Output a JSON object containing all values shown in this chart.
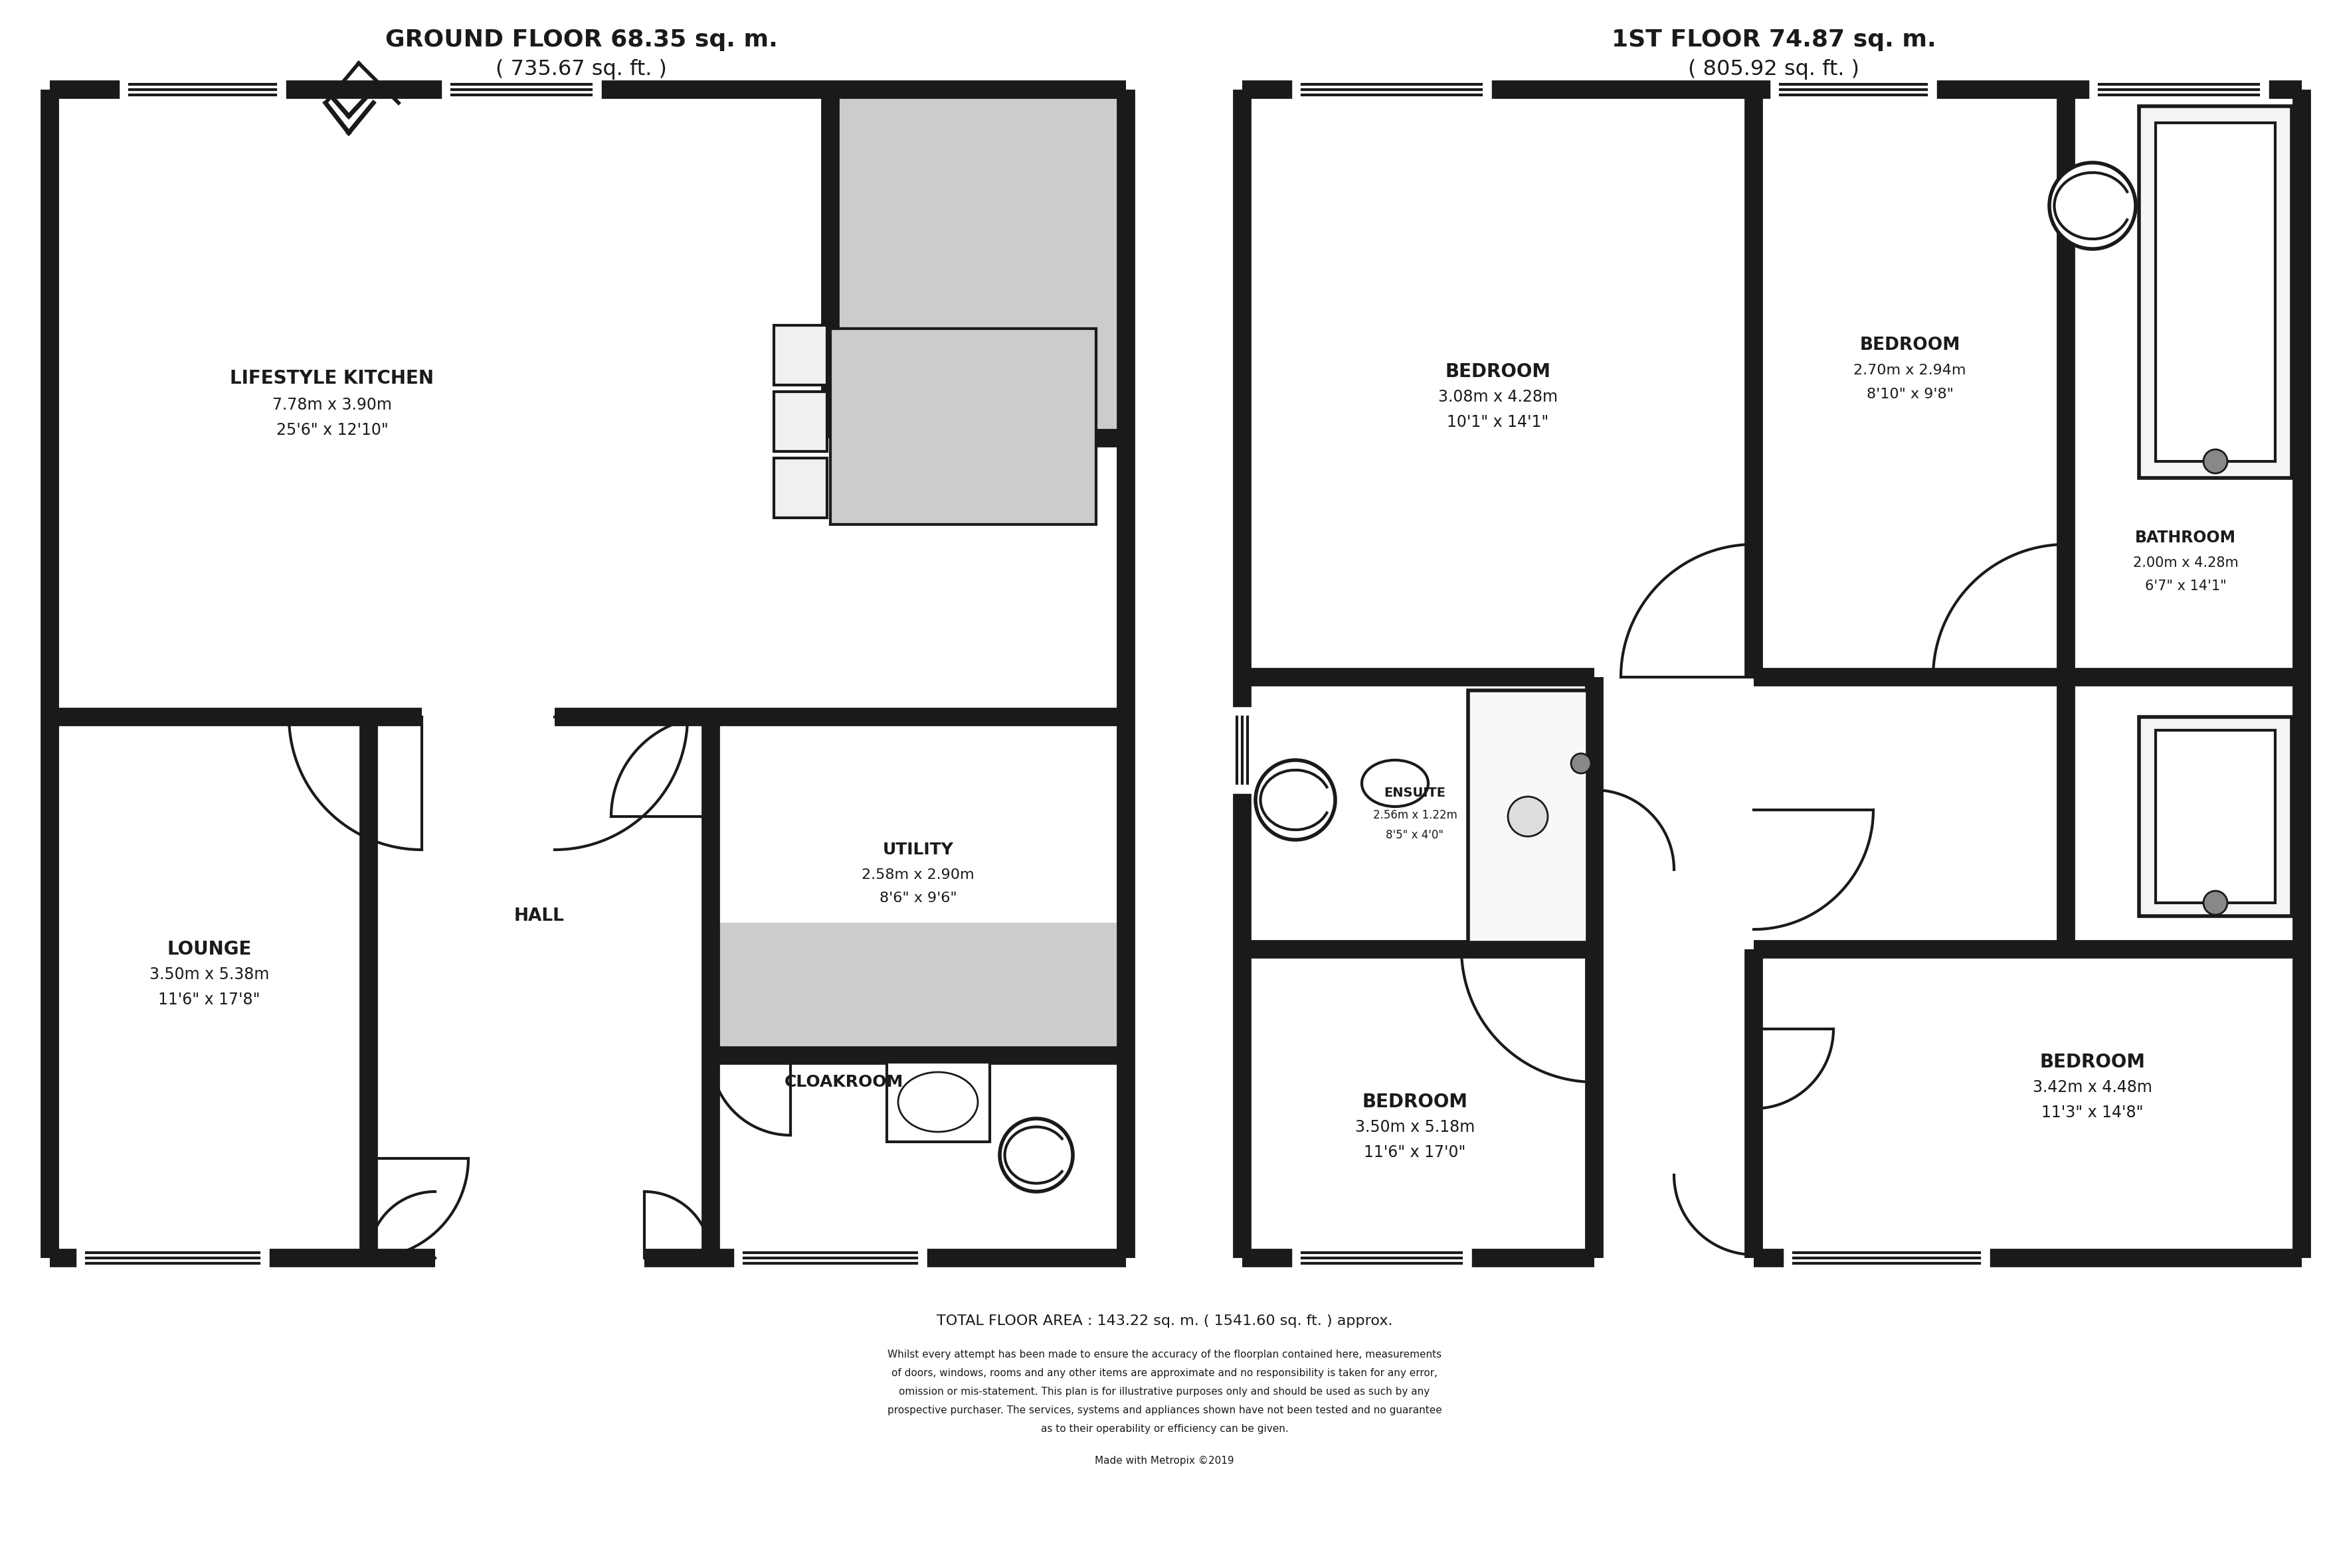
{
  "bg_color": "#ffffff",
  "wall_color": "#1a1a1a",
  "gray_fill": "#cccccc",
  "white": "#ffffff",
  "gf_title_line1": "GROUND FLOOR 68.35 sq. m.",
  "gf_title_line2": "( 735.67 sq. ft. )",
  "ff_title_line1": "1ST FLOOR 74.87 sq. m.",
  "ff_title_line2": "( 805.92 sq. ft. )",
  "total_area": "TOTAL FLOOR AREA : 143.22 sq. m. ( 1541.60 sq. ft. ) approx.",
  "disclaimer1": "Whilst every attempt has been made to ensure the accuracy of the floorplan contained here, measurements",
  "disclaimer2": "of doors, windows, rooms and any other items are approximate and no responsibility is taken for any error,",
  "disclaimer3": "omission or mis-statement. This plan is for illustrative purposes only and should be used as such by any",
  "disclaimer4": "prospective purchaser. The services, systems and appliances shown have not been tested and no guarantee",
  "disclaimer5": "as to their operability or efficiency can be given.",
  "made_with": "Made with Metropix ©2019",
  "text_color": "#1a1a1a"
}
